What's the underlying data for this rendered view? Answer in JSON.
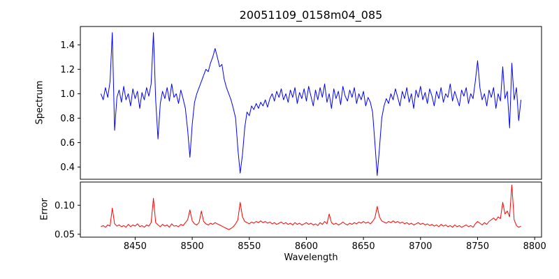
{
  "figure": {
    "title": "20051109_0158m04_085",
    "xlabel": "Wavelength"
  },
  "chart_data": {
    "type": "line",
    "title": "20051109_0158m04_085",
    "xlabel": "Wavelength",
    "legend": "none",
    "grid": false,
    "x_start": 8420,
    "x_step": 2,
    "x_end": 8788,
    "xlim": [
      8402,
      8806
    ],
    "xticks": [
      8450,
      8500,
      8550,
      8600,
      8650,
      8700,
      8750,
      8800
    ],
    "xtick_labels": [
      "8450",
      "8500",
      "8550",
      "8600",
      "8650",
      "8700",
      "8750",
      "8800"
    ],
    "subplots": [
      {
        "name": "spectrum",
        "ylabel": "Spectrum",
        "color": "#0000ff",
        "ylim": [
          0.3,
          1.55
        ],
        "yticks": [
          0.4,
          0.6,
          0.8,
          1.0,
          1.2,
          1.4
        ],
        "ytick_labels": [
          "0.4",
          "0.6",
          "0.8",
          "1.0",
          "1.2",
          "1.4"
        ],
        "features": "continuum near 1.0 with noise; emission spikes to 1.5 at 8430 and 8466; broad bump peaking 1.37 near 8520; Ca II triplet absorption dips to 0.48 at 8498, 0.35 at 8542, 0.33 at 8662; spikes near 8750 and 8780",
        "values": [
          1.0,
          0.95,
          1.05,
          0.97,
          1.1,
          1.5,
          0.7,
          0.97,
          1.03,
          0.93,
          1.06,
          0.95,
          1.0,
          0.9,
          1.04,
          0.96,
          1.02,
          0.88,
          1.01,
          0.95,
          1.05,
          0.98,
          1.08,
          1.5,
          0.95,
          0.63,
          0.92,
          1.02,
          0.96,
          1.05,
          0.94,
          1.08,
          0.97,
          1.0,
          0.92,
          1.03,
          0.96,
          0.88,
          0.7,
          0.48,
          0.75,
          0.93,
          1.0,
          1.05,
          1.1,
          1.15,
          1.2,
          1.18,
          1.25,
          1.3,
          1.37,
          1.3,
          1.22,
          1.24,
          1.12,
          1.05,
          1.0,
          0.95,
          0.88,
          0.8,
          0.55,
          0.35,
          0.5,
          0.72,
          0.85,
          0.82,
          0.9,
          0.87,
          0.92,
          0.88,
          0.93,
          0.9,
          0.95,
          0.89,
          0.96,
          1.0,
          0.94,
          1.02,
          0.97,
          1.04,
          0.95,
          1.0,
          0.93,
          1.03,
          0.97,
          1.05,
          0.92,
          1.01,
          0.96,
          1.04,
          0.94,
          1.06,
          0.98,
          0.9,
          1.03,
          0.95,
          1.05,
          0.97,
          1.08,
          0.93,
          1.0,
          0.88,
          1.04,
          0.96,
          1.02,
          0.91,
          1.06,
          0.98,
          0.94,
          1.03,
          0.97,
          1.05,
          0.92,
          1.0,
          0.95,
          1.02,
          0.9,
          0.97,
          0.93,
          0.85,
          0.6,
          0.33,
          0.55,
          0.8,
          0.9,
          0.96,
          0.92,
          1.0,
          0.95,
          1.04,
          0.97,
          0.9,
          1.02,
          0.96,
          1.05,
          0.93,
          1.0,
          0.88,
          1.03,
          0.97,
          1.06,
          0.95,
          1.01,
          0.92,
          1.04,
          0.98,
          0.9,
          1.02,
          0.96,
          1.05,
          0.93,
          1.0,
          0.97,
          1.08,
          0.94,
          1.02,
          0.96,
          0.9,
          1.03,
          0.98,
          1.05,
          0.92,
          1.0,
          0.96,
          1.1,
          1.27,
          1.05,
          0.95,
          1.0,
          0.9,
          1.03,
          0.97,
          1.05,
          0.88,
          1.0,
          0.94,
          1.22,
          0.96,
          1.02,
          0.72,
          1.25,
          0.95,
          1.05,
          0.78,
          0.95
        ]
      },
      {
        "name": "error",
        "ylabel": "Error",
        "color": "#ff0000",
        "ylim": [
          0.045,
          0.14
        ],
        "yticks": [
          0.05,
          0.1
        ],
        "ytick_labels": [
          "0.05",
          "0.10"
        ],
        "features": "baseline near 0.065 with spikes at 8430, 8466 (0.112), 8498, 8508, 8542 (0.105), 8620, 8662, rising toward red end with maximum 0.135 near 8780",
        "values": [
          0.063,
          0.065,
          0.062,
          0.066,
          0.064,
          0.095,
          0.068,
          0.064,
          0.066,
          0.063,
          0.065,
          0.062,
          0.067,
          0.063,
          0.066,
          0.064,
          0.068,
          0.063,
          0.065,
          0.062,
          0.066,
          0.064,
          0.07,
          0.112,
          0.07,
          0.066,
          0.063,
          0.067,
          0.064,
          0.066,
          0.062,
          0.068,
          0.064,
          0.065,
          0.063,
          0.067,
          0.065,
          0.07,
          0.075,
          0.092,
          0.073,
          0.068,
          0.066,
          0.07,
          0.09,
          0.072,
          0.068,
          0.066,
          0.069,
          0.067,
          0.07,
          0.068,
          0.066,
          0.064,
          0.062,
          0.06,
          0.058,
          0.06,
          0.063,
          0.068,
          0.075,
          0.105,
          0.08,
          0.072,
          0.07,
          0.068,
          0.071,
          0.069,
          0.072,
          0.07,
          0.073,
          0.07,
          0.072,
          0.069,
          0.071,
          0.068,
          0.07,
          0.067,
          0.069,
          0.071,
          0.068,
          0.07,
          0.067,
          0.069,
          0.066,
          0.07,
          0.067,
          0.069,
          0.066,
          0.068,
          0.07,
          0.067,
          0.069,
          0.066,
          0.068,
          0.065,
          0.07,
          0.067,
          0.072,
          0.068,
          0.085,
          0.07,
          0.067,
          0.069,
          0.066,
          0.068,
          0.071,
          0.068,
          0.066,
          0.069,
          0.067,
          0.07,
          0.068,
          0.071,
          0.069,
          0.072,
          0.069,
          0.071,
          0.068,
          0.072,
          0.078,
          0.098,
          0.08,
          0.073,
          0.071,
          0.069,
          0.072,
          0.07,
          0.073,
          0.07,
          0.072,
          0.069,
          0.071,
          0.068,
          0.07,
          0.067,
          0.069,
          0.066,
          0.068,
          0.07,
          0.067,
          0.069,
          0.066,
          0.068,
          0.065,
          0.067,
          0.064,
          0.066,
          0.063,
          0.067,
          0.064,
          0.066,
          0.063,
          0.065,
          0.062,
          0.066,
          0.063,
          0.065,
          0.062,
          0.064,
          0.066,
          0.063,
          0.065,
          0.062,
          0.068,
          0.072,
          0.069,
          0.066,
          0.07,
          0.067,
          0.072,
          0.075,
          0.078,
          0.074,
          0.08,
          0.077,
          0.105,
          0.085,
          0.09,
          0.08,
          0.135,
          0.075,
          0.065,
          0.062,
          0.064
        ]
      }
    ]
  }
}
